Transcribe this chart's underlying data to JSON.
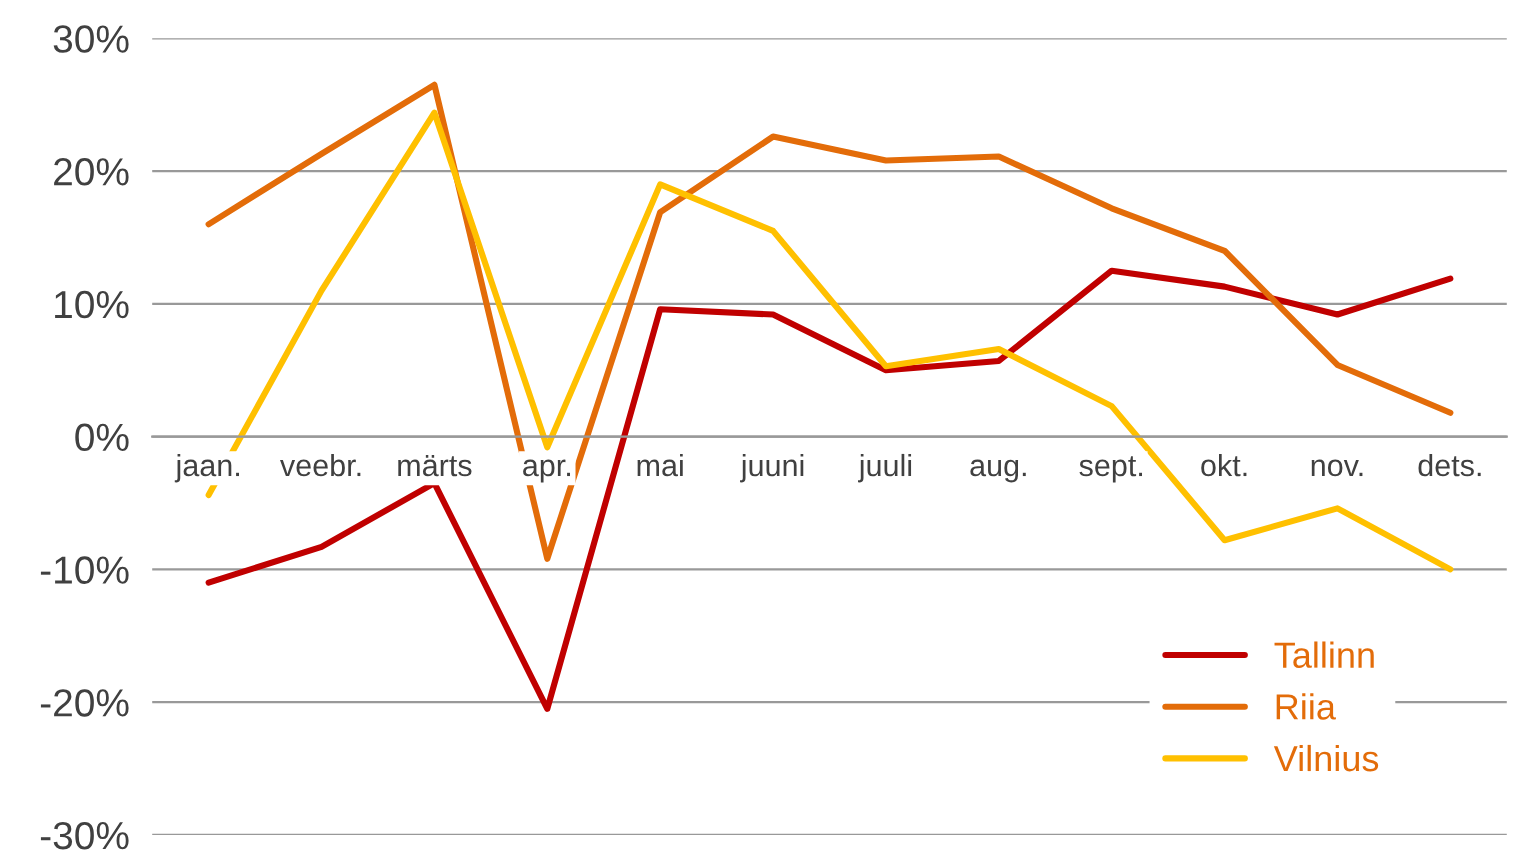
{
  "chart_data": {
    "type": "line",
    "categories": [
      "jaan.",
      "veebr.",
      "märts",
      "apr.",
      "mai",
      "juuni",
      "juuli",
      "aug.",
      "sept.",
      "okt.",
      "nov.",
      "dets."
    ],
    "series": [
      {
        "name": "Tallinn",
        "color": "#c00000",
        "values": [
          -11,
          -8.3,
          -3.5,
          -20.5,
          9.6,
          9.2,
          5,
          5.7,
          12.5,
          11.3,
          9.2,
          11.9
        ]
      },
      {
        "name": "Riia",
        "color": "#e36c09",
        "values": [
          16,
          21.3,
          26.5,
          -9.2,
          16.9,
          22.6,
          20.8,
          21.1,
          17.2,
          14,
          5.4,
          1.8
        ]
      },
      {
        "name": "Vilnius",
        "color": "#ffc000",
        "values": [
          -4.4,
          11,
          24.4,
          -0.8,
          19,
          15.5,
          5.3,
          6.6,
          2.3,
          -7.8,
          -5.4,
          -10
        ]
      }
    ],
    "ylim": [
      -30,
      30
    ],
    "yticks": [
      {
        "value": -30,
        "label": "-30%"
      },
      {
        "value": -20,
        "label": "-20%"
      },
      {
        "value": -10,
        "label": "-10%"
      },
      {
        "value": 0,
        "label": "0%"
      },
      {
        "value": 10,
        "label": "10%"
      },
      {
        "value": 20,
        "label": "20%"
      },
      {
        "value": 30,
        "label": "30%"
      }
    ],
    "grid": "y",
    "legend": "bottom right",
    "marker": "none",
    "line_style": "solid"
  }
}
